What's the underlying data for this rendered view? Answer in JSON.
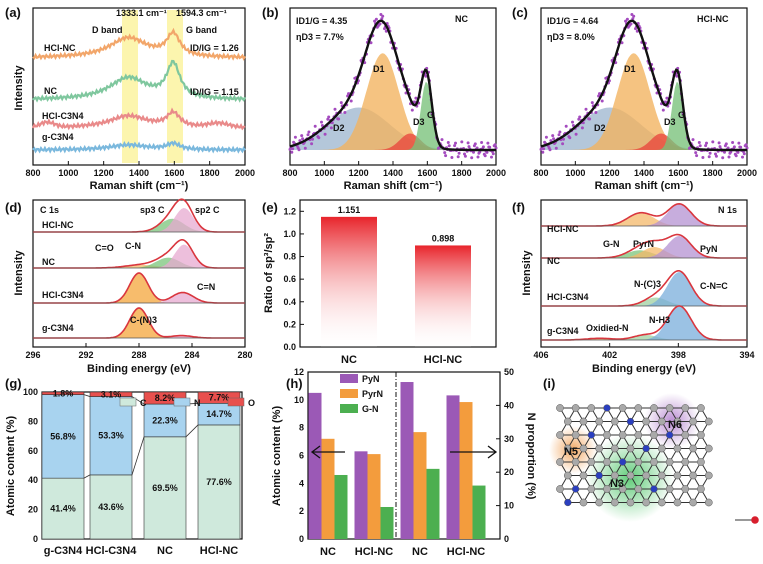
{
  "panels": {
    "a": {
      "label": "(a)",
      "xlabel": "Raman shift (cm⁻¹)",
      "ylabel": "Intensity",
      "xlim": [
        800,
        2000
      ],
      "xticks": [
        "800",
        "1000",
        "1200",
        "1400",
        "1600",
        "1800",
        "2000"
      ],
      "d_band": "D band",
      "g_band": "G band",
      "d_pos": "1333.1 cm⁻¹",
      "g_pos": "1594.3 cm⁻¹",
      "curves": [
        "HCl-NC",
        "NC",
        "HCl-C3N4",
        "g-C3N4"
      ],
      "ratio_hclnc": "ID/IG = 1.26",
      "ratio_nc": "ID/IG = 1.15",
      "colors": [
        "#f2a66a",
        "#7fc79e",
        "#e98a8a",
        "#7ab8dd"
      ]
    },
    "b": {
      "label": "(b)",
      "title": "NC",
      "ratio": "ID1/G = 4.35",
      "eta": "ηD3 = 7.7%",
      "xlabel": "Raman shift (cm⁻¹)",
      "xticks": [
        "800",
        "1000",
        "1200",
        "1400",
        "1600",
        "1800",
        "2000"
      ],
      "peaks": [
        "D1",
        "D2",
        "D3",
        "G"
      ]
    },
    "c": {
      "label": "(c)",
      "title": "HCl-NC",
      "ratio": "ID1/G = 4.64",
      "eta": "ηD3 = 8.0%",
      "xlabel": "Raman shift (cm⁻¹)",
      "xticks": [
        "800",
        "1000",
        "1200",
        "1400",
        "1600",
        "1800",
        "2000"
      ],
      "peaks": [
        "D1",
        "D2",
        "D3",
        "G"
      ]
    },
    "d": {
      "label": "(d)",
      "title": "C 1s",
      "xlabel": "Binding energy (eV)",
      "ylabel": "Intensity",
      "xticks": [
        "296",
        "292",
        "288",
        "284",
        "280"
      ],
      "samples": [
        "HCl-NC",
        "NC",
        "HCl-C3N4",
        "g-C3N4"
      ],
      "anns": [
        "sp3 C",
        "sp2 C",
        "C=O",
        "C-N",
        "C=N",
        "C-(N)3"
      ]
    },
    "e": {
      "label": "(e)",
      "ylabel": "Ratio of sp³/sp²",
      "yticks": [
        "0.0",
        "0.2",
        "0.4",
        "0.6",
        "0.8",
        "1.0",
        "1.2"
      ]
    },
    "f": {
      "label": "(f)",
      "title": "N 1s",
      "xlabel": "Binding energy (eV)",
      "ylabel": "Intensity",
      "xticks": [
        "406",
        "402",
        "398",
        "394"
      ],
      "samples": [
        "HCl-NC",
        "NC",
        "HCl-C3N4",
        "g-C3N4"
      ],
      "anns": [
        "G-N",
        "PyrN",
        "PyN",
        "N-(C)3",
        "C-N=C",
        "N-H3",
        "Oxidied-N"
      ]
    },
    "g": {
      "label": "(g)",
      "ylabel": "Atomic content (%)",
      "yticks": [
        "0",
        "20",
        "40",
        "60",
        "80",
        "100"
      ]
    },
    "h": {
      "label": "(h)",
      "ylabel_left": "Atomic content (%)",
      "ylabel_right": "N proportion (%)",
      "yticks_left": [
        "0",
        "2",
        "4",
        "6",
        "8",
        "10",
        "12"
      ],
      "yticks_right": [
        "0",
        "10",
        "20",
        "30",
        "40",
        "50"
      ]
    },
    "i": {
      "label": "(i)",
      "sites": [
        "N6",
        "N5",
        "N3"
      ]
    }
  },
  "chart_data": [
    {
      "type": "bar",
      "panel": "e",
      "categories": [
        "NC",
        "HCl-NC"
      ],
      "values": [
        1.151,
        0.898
      ],
      "value_labels": [
        "1.151",
        "0.898"
      ],
      "ylim": [
        0,
        1.3
      ],
      "ylabel": "Ratio of sp³/sp²"
    },
    {
      "type": "bar",
      "panel": "g",
      "stacked": true,
      "categories": [
        "g-C3N4",
        "HCl-C3N4",
        "NC",
        "HCl-NC"
      ],
      "ylim": [
        0,
        100
      ],
      "series": [
        {
          "name": "C",
          "values": [
            41.4,
            43.6,
            69.5,
            77.6
          ],
          "labels": [
            "41.4%",
            "43.6%",
            "69.5%",
            "77.6%"
          ],
          "color": "#cfe9dc"
        },
        {
          "name": "N",
          "values": [
            56.8,
            53.3,
            22.3,
            14.7
          ],
          "labels": [
            "56.8%",
            "53.3%",
            "22.3%",
            "14.7%"
          ],
          "color": "#a8d3ef"
        },
        {
          "name": "O",
          "values": [
            1.8,
            3.1,
            8.2,
            7.7
          ],
          "labels": [
            "1.8%",
            "3.1%",
            "8.2%",
            "7.7%"
          ],
          "color": "#e8504e"
        }
      ]
    },
    {
      "type": "bar",
      "panel": "h",
      "categories": [
        "NC",
        "HCl-NC",
        "NC",
        "HCl-NC"
      ],
      "series": [
        {
          "name": "PyN",
          "values": [
            10.5,
            6.3,
            47,
            43
          ],
          "color": "#9b59b6"
        },
        {
          "name": "PyrN",
          "values": [
            7.2,
            6.1,
            32,
            41
          ],
          "color": "#f39c3d"
        },
        {
          "name": "G-N",
          "values": [
            4.6,
            2.3,
            21,
            16
          ],
          "color": "#4caf50"
        }
      ],
      "ylim_left": [
        0,
        12
      ],
      "ylim_right": [
        0,
        50
      ]
    }
  ]
}
